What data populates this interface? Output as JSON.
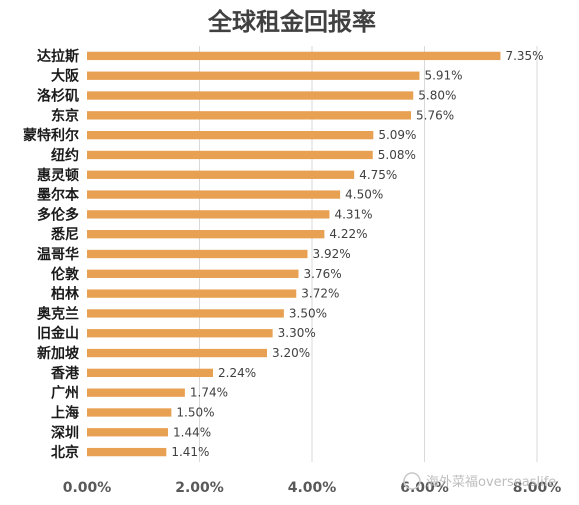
{
  "chart_data": {
    "type": "bar",
    "orientation": "horizontal",
    "title": "全球租金回报率",
    "categories": [
      "达拉斯",
      "大阪",
      "洛杉矶",
      "东京",
      "蒙特利尔",
      "纽约",
      "惠灵顿",
      "墨尔本",
      "多伦多",
      "悉尼",
      "温哥华",
      "伦敦",
      "柏林",
      "奥克兰",
      "旧金山",
      "新加坡",
      "香港",
      "广州",
      "上海",
      "深圳",
      "北京"
    ],
    "values": [
      7.35,
      5.91,
      5.8,
      5.76,
      5.09,
      5.08,
      4.75,
      4.5,
      4.31,
      4.22,
      3.92,
      3.76,
      3.72,
      3.5,
      3.3,
      3.2,
      2.24,
      1.74,
      1.5,
      1.44,
      1.41
    ],
    "value_labels": [
      "7.35%",
      "5.91%",
      "5.80%",
      "5.76%",
      "5.09%",
      "5.08%",
      "4.75%",
      "4.50%",
      "4.31%",
      "4.22%",
      "3.92%",
      "3.76%",
      "3.72%",
      "3.50%",
      "3.30%",
      "3.20%",
      "2.24%",
      "1.74%",
      "1.50%",
      "1.44%",
      "1.41%"
    ],
    "xticks": [
      0,
      2,
      4,
      6,
      8
    ],
    "xtick_labels": [
      "0.00%",
      "2.00%",
      "4.00%",
      "6.00%",
      "8.00%"
    ],
    "xlim": [
      0,
      8
    ],
    "grid": true,
    "bar_color": "#E8A052",
    "xlabel": "",
    "ylabel": ""
  },
  "watermark": "海外菜福overseaslife"
}
